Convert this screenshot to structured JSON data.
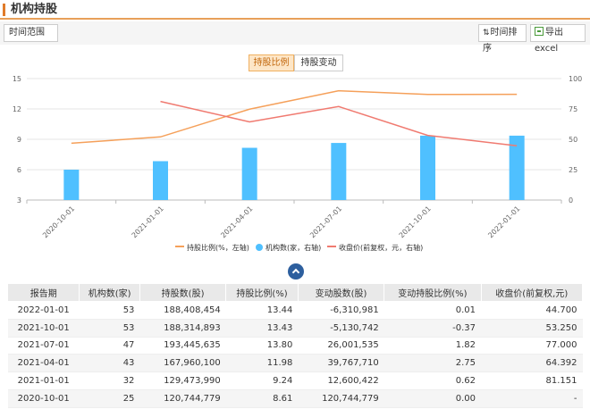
{
  "header": {
    "title": "机构持股"
  },
  "toolbar": {
    "range_label": "时间范围",
    "sort_label": "时间排序",
    "export_label": "导出excel"
  },
  "tabs": [
    {
      "label": "持股比例",
      "active": true
    },
    {
      "label": "持股变动",
      "active": false
    }
  ],
  "colors": {
    "ratio_line": "#f5a05a",
    "institution_bar": "#4fc0ff",
    "close_line": "#f07a70",
    "accent": "#e07b2a"
  },
  "chart_data": {
    "type": "bar",
    "categories": [
      "2020-10-01",
      "2021-01-01",
      "2021-04-01",
      "2021-07-01",
      "2021-10-01",
      "2022-01-01"
    ],
    "left_axis": {
      "min": 3,
      "max": 15,
      "ticks": [
        "3",
        "6",
        "9",
        "12",
        "15"
      ]
    },
    "right_axis": {
      "min": 0,
      "max": 100,
      "ticks": [
        "0",
        "25",
        "50",
        "75",
        "100"
      ]
    },
    "grid": true,
    "legend_position": "bottom",
    "series": [
      {
        "name": "持股比例(%，左轴)",
        "type": "line",
        "axis": "left",
        "values": [
          8.61,
          9.24,
          11.98,
          13.8,
          13.43,
          13.44
        ]
      },
      {
        "name": "机构数(家，右轴)",
        "type": "bar",
        "axis": "right",
        "values": [
          25,
          32,
          43,
          47,
          53,
          53
        ]
      },
      {
        "name": "收盘价(前复权，元，右轴)",
        "type": "line",
        "axis": "right",
        "values": [
          null,
          81.151,
          64.392,
          77.0,
          53.25,
          44.7
        ]
      }
    ]
  },
  "table": {
    "headers": [
      "报告期",
      "机构数(家)",
      "持股数(股)",
      "持股比例(%)",
      "变动股数(股)",
      "变动持股比例(%)",
      "收盘价(前复权,元)"
    ],
    "rows": [
      [
        "2022-01-01",
        "53",
        "188,408,454",
        "13.44",
        "-6,310,981",
        "0.01",
        "44.700"
      ],
      [
        "2021-10-01",
        "53",
        "188,314,893",
        "13.43",
        "-5,130,742",
        "-0.37",
        "53.250"
      ],
      [
        "2021-07-01",
        "47",
        "193,445,635",
        "13.80",
        "26,001,535",
        "1.82",
        "77.000"
      ],
      [
        "2021-04-01",
        "43",
        "167,960,100",
        "11.98",
        "39,767,710",
        "2.75",
        "64.392"
      ],
      [
        "2021-01-01",
        "32",
        "129,473,990",
        "9.24",
        "12,600,422",
        "0.62",
        "81.151"
      ],
      [
        "2020-10-01",
        "25",
        "120,744,779",
        "8.61",
        "120,744,779",
        "0.00",
        "-"
      ]
    ]
  }
}
